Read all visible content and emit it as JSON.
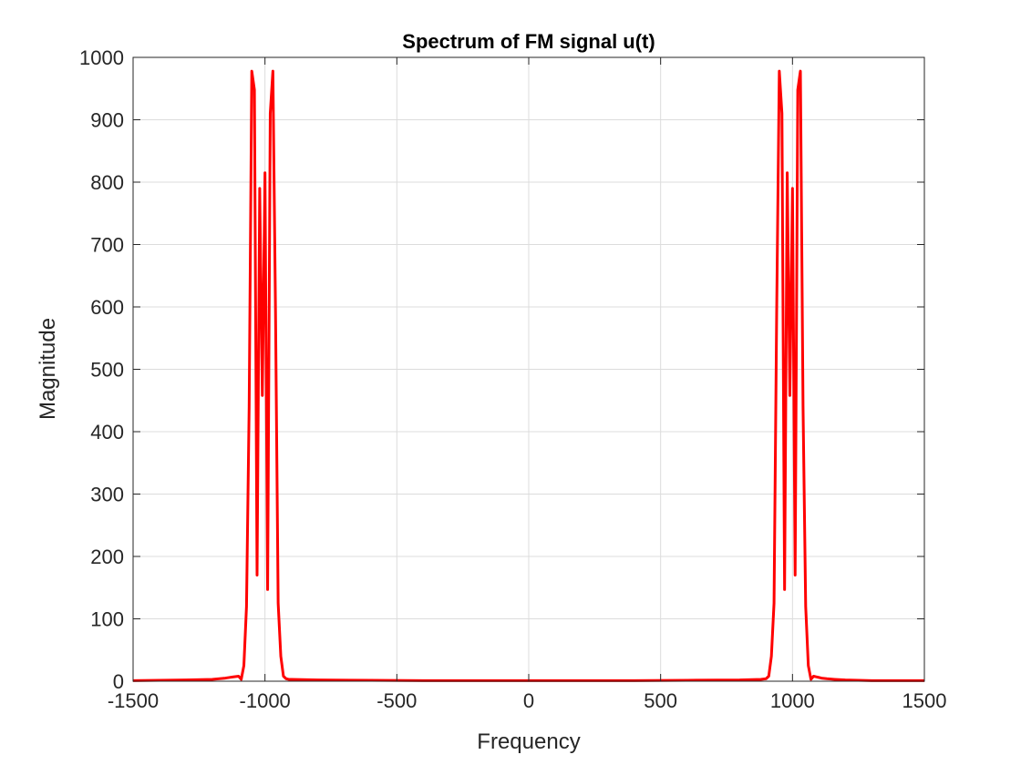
{
  "chart_data": {
    "type": "line",
    "title": "Spectrum of FM signal u(t)",
    "xlabel": "Frequency",
    "ylabel": "Magnitude",
    "xlim": [
      -1500,
      1500
    ],
    "ylim": [
      0,
      1000
    ],
    "xticks": [
      -1500,
      -1000,
      -500,
      0,
      500,
      1000,
      1500
    ],
    "yticks": [
      0,
      100,
      200,
      300,
      400,
      500,
      600,
      700,
      800,
      900,
      1000
    ],
    "xtick_labels": [
      "-1500",
      "-1000",
      "-500",
      "0",
      "500",
      "1000",
      "1500"
    ],
    "ytick_labels": [
      "0",
      "100",
      "200",
      "300",
      "400",
      "500",
      "600",
      "700",
      "800",
      "900",
      "1000"
    ],
    "grid": true,
    "series": [
      {
        "color": "#ff0000",
        "x": [
          -1500,
          -1300,
          -1200,
          -1150,
          -1120,
          -1100,
          -1090,
          -1080,
          -1070,
          -1060,
          -1050,
          -1040,
          -1030,
          -1020,
          -1010,
          -1000,
          -990,
          -980,
          -970,
          -960,
          -950,
          -940,
          -930,
          -920,
          -910,
          -900,
          -800,
          -600,
          -400,
          -200,
          0,
          200,
          400,
          600,
          800,
          880,
          900,
          910,
          920,
          930,
          940,
          950,
          960,
          970,
          980,
          990,
          1000,
          1010,
          1020,
          1030,
          1040,
          1050,
          1060,
          1070,
          1080,
          1090,
          1100,
          1110,
          1130,
          1160,
          1200,
          1300,
          1500
        ],
        "y": [
          1,
          2,
          3,
          5,
          7,
          8,
          3,
          25,
          120,
          440,
          978,
          948,
          170,
          790,
          458,
          815,
          147,
          910,
          978,
          590,
          125,
          40,
          8,
          4,
          3,
          3,
          2,
          1.5,
          1,
          1,
          1,
          1,
          1,
          1.5,
          2,
          3,
          4,
          8,
          40,
          125,
          590,
          978,
          910,
          147,
          815,
          458,
          790,
          170,
          948,
          978,
          440,
          120,
          25,
          3,
          8,
          7,
          6,
          5,
          4,
          3,
          2,
          1,
          1
        ]
      }
    ]
  }
}
